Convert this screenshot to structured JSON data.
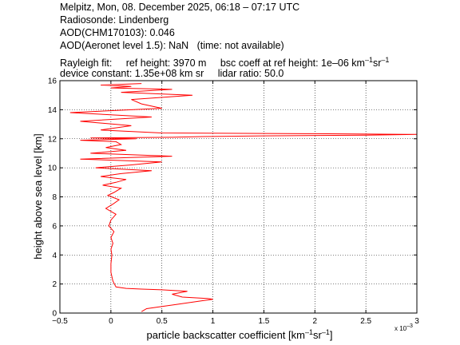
{
  "header": {
    "line1": "Melpitz, Mon, 08. December 2025, 06:18 – 07:17 UTC",
    "line2": "Radiosonde: Lindenberg",
    "line3": "AOD(CHM170103): 0.046",
    "line4_a": "AOD(Aeronet level 1.5): NaN",
    "line4_b": "(time: not available)",
    "line5_a": "Rayleigh fit:",
    "line5_b": "ref height: 3970 m",
    "line5_c": "bsc coeff at ref height: 1e–06 km",
    "line5_sup1": "–1",
    "line5_d": "sr",
    "line5_sup2": "–1",
    "line6_a": "device constant: 1.35e+08 km sr",
    "line6_b": "lidar ratio: 50.0"
  },
  "chart_data": {
    "type": "line",
    "xlabel_main": "particle backscatter coefficient [km",
    "xlabel_sup1": "–1",
    "xlabel_mid": "sr",
    "xlabel_sup2": "–1",
    "xlabel_end": "]",
    "ylabel": "height above sea level [km]",
    "x_multiplier_label": "x 10",
    "x_multiplier_exp": "–3",
    "xlim": [
      -0.5,
      3
    ],
    "ylim": [
      0,
      16
    ],
    "xticks": [
      -0.5,
      0,
      0.5,
      1,
      1.5,
      2,
      2.5,
      3
    ],
    "xtick_labels": [
      "−0.5",
      "0",
      "0.5",
      "1",
      "1.5",
      "2",
      "2.5",
      "3"
    ],
    "yticks": [
      0,
      2,
      4,
      6,
      8,
      10,
      12,
      14,
      16
    ],
    "ytick_labels": [
      "0",
      "2",
      "4",
      "6",
      "8",
      "10",
      "12",
      "14",
      "16"
    ],
    "grid": true,
    "line_color": "#ff0000",
    "series": [
      {
        "x": [
          0.3,
          0.35,
          0.55,
          0.75,
          0.9,
          1.0,
          0.95,
          0.7,
          0.6,
          0.75,
          0.5,
          0.3,
          0.15,
          0.05,
          0.02,
          0.0,
          0.0,
          0.01,
          0.0,
          0.02,
          0.0,
          0.03,
          -0.02,
          0.0,
          0.05,
          -0.05,
          0.02,
          0.08,
          -0.03,
          0.03,
          0.1,
          -0.08,
          0.05,
          0.15,
          -0.1,
          0.1,
          0.4,
          -0.15,
          0.2,
          0.5,
          -0.3,
          0.6,
          -0.2,
          0.15,
          -0.05,
          0.1,
          0.05,
          -0.3,
          0.25,
          -0.2,
          0.6,
          0.9,
          1.5,
          2.5,
          3.0,
          2.0,
          0.5,
          -0.1,
          0.2,
          -0.3,
          0.4,
          -0.4,
          0.5,
          0.3,
          0.2,
          0.8,
          0.1,
          0.6,
          0.0,
          0.2,
          -0.1,
          0.3
        ],
        "y": [
          0.1,
          0.3,
          0.5,
          0.7,
          0.85,
          0.95,
          1.0,
          1.1,
          1.3,
          1.5,
          1.6,
          1.65,
          1.7,
          1.8,
          2.2,
          2.8,
          3.4,
          4.0,
          4.4,
          4.8,
          5.2,
          5.6,
          6.0,
          6.4,
          6.8,
          7.2,
          7.5,
          7.8,
          8.1,
          8.3,
          8.6,
          8.8,
          9.0,
          9.2,
          9.4,
          9.6,
          9.8,
          10.0,
          10.2,
          10.4,
          10.6,
          10.8,
          11.0,
          11.2,
          11.4,
          11.6,
          11.8,
          11.9,
          12.0,
          12.05,
          12.1,
          12.15,
          12.2,
          12.25,
          12.3,
          12.35,
          12.4,
          12.6,
          12.9,
          13.2,
          13.5,
          13.8,
          14.1,
          14.4,
          14.7,
          15.0,
          15.2,
          15.4,
          15.5,
          15.6,
          15.7,
          15.8
        ]
      }
    ]
  }
}
